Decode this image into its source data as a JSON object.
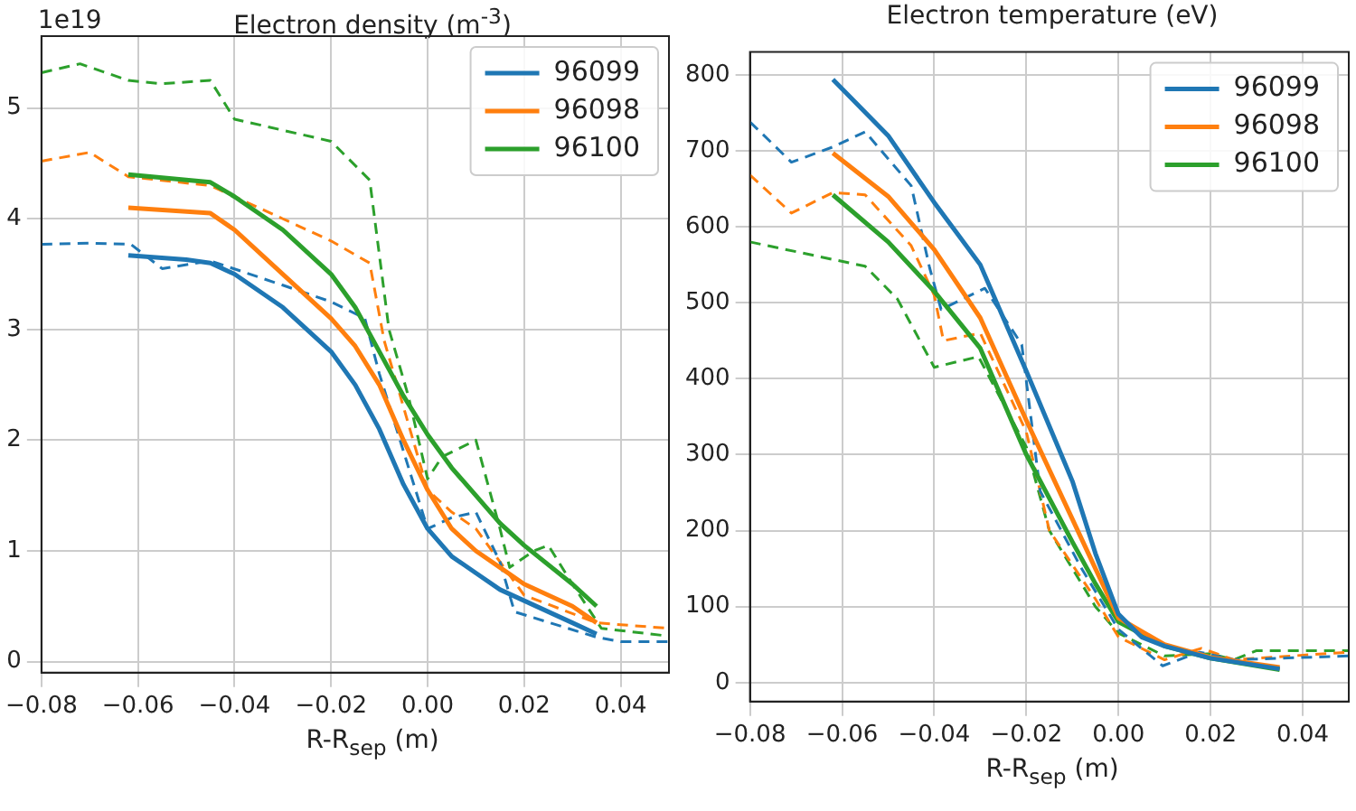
{
  "chart_data": [
    {
      "type": "line",
      "title": "Electron density (m$^{-3}$)",
      "xlabel": "R-R$_{sep}$ (m)",
      "annotations": [
        "1e19"
      ],
      "xlim": [
        -0.08,
        0.05
      ],
      "xticks": [
        {
          "value": -0.08,
          "label": "−0.08"
        },
        {
          "value": -0.06,
          "label": "−0.06"
        },
        {
          "value": -0.04,
          "label": "−0.04"
        },
        {
          "value": -0.02,
          "label": "−0.02"
        },
        {
          "value": 0,
          "label": "0.00"
        },
        {
          "value": 0.02,
          "label": "0.02"
        },
        {
          "value": 0.04,
          "label": "0.04"
        }
      ],
      "ylim": [
        -0.1,
        5.65
      ],
      "yticks": [
        0,
        1,
        2,
        3,
        4,
        5
      ],
      "grid": true,
      "legend": "top right",
      "series": [
        {
          "name": "96099",
          "color": "#1f77b4",
          "line_style": "solid",
          "x": [
            -0.062,
            -0.05,
            -0.045,
            -0.04,
            -0.03,
            -0.02,
            -0.015,
            -0.01,
            -0.005,
            0,
            0.005,
            0.01,
            0.015,
            0.02,
            0.03,
            0.035
          ],
          "values": [
            3.67,
            3.63,
            3.6,
            3.5,
            3.2,
            2.8,
            2.5,
            2.1,
            1.6,
            1.2,
            0.95,
            0.8,
            0.65,
            0.55,
            0.35,
            0.25
          ]
        },
        {
          "name": "96098",
          "color": "#ff7f0e",
          "line_style": "solid",
          "x": [
            -0.062,
            -0.045,
            -0.04,
            -0.03,
            -0.02,
            -0.015,
            -0.01,
            -0.005,
            0,
            0.005,
            0.01,
            0.015,
            0.02,
            0.03,
            0.035
          ],
          "values": [
            4.1,
            4.05,
            3.9,
            3.5,
            3.1,
            2.85,
            2.5,
            2.0,
            1.55,
            1.2,
            1.0,
            0.85,
            0.7,
            0.5,
            0.35
          ]
        },
        {
          "name": "96100",
          "color": "#2ca02c",
          "line_style": "solid",
          "x": [
            -0.062,
            -0.045,
            -0.04,
            -0.03,
            -0.02,
            -0.015,
            -0.01,
            -0.005,
            0,
            0.005,
            0.01,
            0.015,
            0.02,
            0.03,
            0.035
          ],
          "values": [
            4.4,
            4.33,
            4.2,
            3.9,
            3.5,
            3.2,
            2.8,
            2.4,
            2.05,
            1.75,
            1.5,
            1.25,
            1.05,
            0.7,
            0.5
          ]
        },
        {
          "color": "#1f77b4",
          "line_style": "dashed",
          "x": [
            -0.08,
            -0.07,
            -0.0615,
            -0.055,
            -0.045,
            -0.03,
            -0.02,
            -0.013,
            -0.01,
            -0.005,
            0,
            0.005,
            0.01,
            0.015,
            0.018,
            0.035,
            0.04,
            0.05
          ],
          "values": [
            3.77,
            3.78,
            3.77,
            3.55,
            3.62,
            3.4,
            3.25,
            3.1,
            2.6,
            1.9,
            1.2,
            1.3,
            1.35,
            0.9,
            0.45,
            0.22,
            0.18,
            0.18
          ]
        },
        {
          "color": "#ff7f0e",
          "line_style": "dashed",
          "x": [
            -0.08,
            -0.07,
            -0.062,
            -0.045,
            -0.04,
            -0.03,
            -0.02,
            -0.012,
            -0.009,
            -0.005,
            0,
            0.005,
            0.01,
            0.015,
            0.02,
            0.035,
            0.05
          ],
          "values": [
            4.52,
            4.6,
            4.38,
            4.3,
            4.2,
            4.0,
            3.8,
            3.6,
            2.9,
            2.3,
            1.55,
            1.35,
            1.2,
            0.9,
            0.6,
            0.35,
            0.3
          ]
        },
        {
          "color": "#2ca02c",
          "line_style": "dashed",
          "x": [
            -0.08,
            -0.072,
            -0.062,
            -0.055,
            -0.045,
            -0.04,
            -0.03,
            -0.02,
            -0.012,
            -0.008,
            -0.004,
            0,
            0.003,
            0.01,
            0.015,
            0.017,
            0.022,
            0.025,
            0.03,
            0.036,
            0.05
          ],
          "values": [
            5.32,
            5.4,
            5.25,
            5.22,
            5.25,
            4.9,
            4.8,
            4.7,
            4.35,
            3.0,
            2.4,
            1.65,
            1.85,
            2.0,
            1.2,
            0.85,
            1.0,
            1.05,
            0.7,
            0.3,
            0.23
          ]
        }
      ]
    },
    {
      "type": "line",
      "title": "Electron temperature (eV)",
      "xlabel": "R-R$_{sep}$ (m)",
      "xlim": [
        -0.08,
        0.05
      ],
      "xticks": [
        {
          "value": -0.08,
          "label": "−0.08"
        },
        {
          "value": -0.06,
          "label": "−0.06"
        },
        {
          "value": -0.04,
          "label": "−0.04"
        },
        {
          "value": -0.02,
          "label": "−0.02"
        },
        {
          "value": 0,
          "label": "0.00"
        },
        {
          "value": 0.02,
          "label": "0.02"
        },
        {
          "value": 0.04,
          "label": "0.04"
        }
      ],
      "ylim": [
        -25,
        830
      ],
      "yticks": [
        0,
        100,
        200,
        300,
        400,
        500,
        600,
        700,
        800
      ],
      "grid": true,
      "legend": "top right",
      "series": [
        {
          "name": "96099",
          "color": "#1f77b4",
          "line_style": "solid",
          "x": [
            -0.062,
            -0.05,
            -0.04,
            -0.03,
            -0.02,
            -0.01,
            -0.005,
            0,
            0.005,
            0.01,
            0.02,
            0.035
          ],
          "values": [
            794,
            720,
            632,
            550,
            410,
            265,
            170,
            90,
            60,
            48,
            32,
            18
          ]
        },
        {
          "name": "96098",
          "color": "#ff7f0e",
          "line_style": "solid",
          "x": [
            -0.062,
            -0.05,
            -0.04,
            -0.03,
            -0.02,
            -0.01,
            -0.005,
            0,
            0.01,
            0.02,
            0.035
          ],
          "values": [
            697,
            640,
            570,
            480,
            345,
            215,
            150,
            85,
            50,
            33,
            20
          ]
        },
        {
          "name": "96100",
          "color": "#2ca02c",
          "line_style": "solid",
          "x": [
            -0.062,
            -0.05,
            -0.04,
            -0.03,
            -0.02,
            -0.01,
            -0.005,
            0,
            0.01,
            0.02,
            0.035
          ],
          "values": [
            642,
            580,
            515,
            440,
            300,
            185,
            130,
            80,
            48,
            32,
            17
          ]
        },
        {
          "color": "#1f77b4",
          "line_style": "dashed",
          "x": [
            -0.08,
            -0.071,
            -0.062,
            -0.055,
            -0.045,
            -0.041,
            -0.0385,
            -0.029,
            -0.021,
            -0.017,
            -0.008,
            0,
            0.0096,
            0.0176,
            0.025,
            0.05
          ],
          "values": [
            738,
            685,
            705,
            725,
            654,
            546,
            491,
            519,
            445,
            252,
            150,
            70,
            22,
            40,
            30,
            35
          ]
        },
        {
          "color": "#ff7f0e",
          "line_style": "dashed",
          "x": [
            -0.08,
            -0.071,
            -0.062,
            -0.055,
            -0.045,
            -0.04,
            -0.038,
            -0.03,
            -0.02,
            -0.015,
            -0.005,
            0,
            0.01,
            0.018,
            0.025,
            0.05
          ],
          "values": [
            668,
            618,
            645,
            642,
            575,
            510,
            450,
            460,
            330,
            200,
            110,
            60,
            30,
            45,
            30,
            40
          ]
        },
        {
          "color": "#2ca02c",
          "line_style": "dashed",
          "x": [
            -0.08,
            -0.055,
            -0.048,
            -0.04,
            -0.0304,
            -0.02,
            -0.015,
            -0.005,
            0,
            0.01,
            0.02,
            0.025,
            0.03,
            0.05
          ],
          "values": [
            580,
            548,
            505,
            415,
            429,
            310,
            200,
            100,
            65,
            35,
            38,
            30,
            42,
            42
          ]
        }
      ]
    }
  ]
}
